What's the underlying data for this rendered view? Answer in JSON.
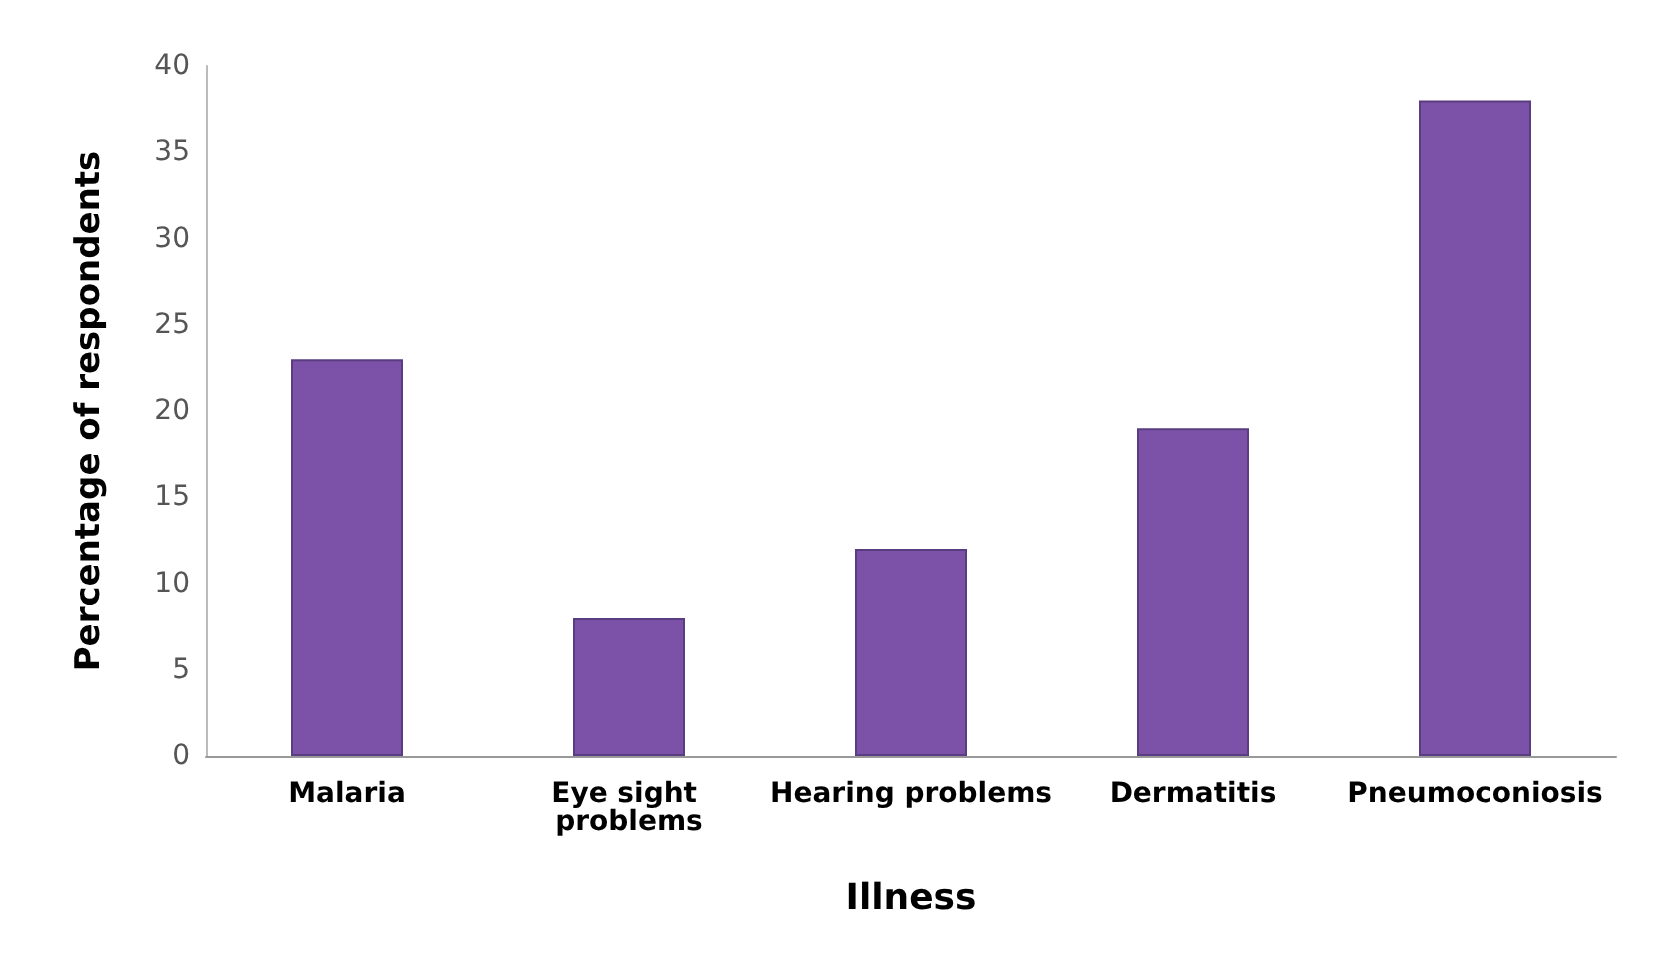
{
  "chart_data": {
    "type": "bar",
    "xlabel": "Illness",
    "ylabel": "Percentage of respondents",
    "categories": [
      "Malaria",
      "Eye sight problems",
      "Hearing problems",
      "Dermatitis",
      "Pneumoconiosis"
    ],
    "values": [
      23,
      8,
      12,
      19,
      38
    ],
    "color": "#7b52a8",
    "ylim": [
      0,
      40
    ],
    "yticks": [
      0,
      5,
      10,
      15,
      20,
      25,
      30,
      35,
      40
    ],
    "grid": false
  }
}
